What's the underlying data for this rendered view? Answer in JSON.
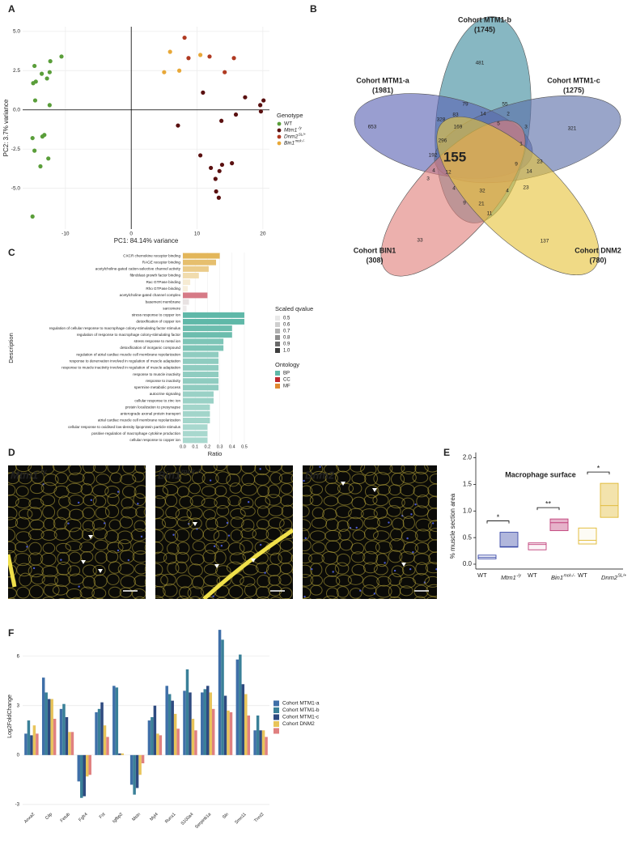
{
  "chart_data": [
    {
      "type": "scatter",
      "panel": "A",
      "x_label": "PC1: 84.14% variance",
      "y_label": "PC2: 3.7% variance",
      "xlim": [
        -16.5,
        21
      ],
      "ylim": [
        -7.6,
        5.3
      ],
      "xticks": [
        -10,
        0,
        10,
        20
      ],
      "yticks": [
        {
          "value": -5,
          "label": "-5.0"
        },
        -2.5,
        {
          "value": 0,
          "label": "0.0"
        },
        2.5,
        {
          "value": 5,
          "label": "5.0"
        }
      ],
      "grid": true,
      "legend_title": "Genotype",
      "series": [
        {
          "name": "WT",
          "color": "#5a9e3a",
          "x": [
            -10.6,
            -12.3,
            -14.7,
            -13.6,
            -12.4,
            -14.9,
            -14.5,
            -12.8,
            -14.6,
            -12.4,
            -13.2,
            -13.5,
            -15.0,
            -12.6,
            -14.7,
            -13.8,
            -15.0
          ],
          "values": [
            3.4,
            3.1,
            2.8,
            2.3,
            2.4,
            1.7,
            1.8,
            2.0,
            0.6,
            0.3,
            -1.6,
            -1.7,
            -1.8,
            -3.1,
            -2.6,
            -3.6,
            -6.8
          ]
        },
        {
          "name": "Mtm1",
          "name_sup": "-/y",
          "color": "#5a1010",
          "x": [
            7.1,
            10.5,
            10.9,
            13.7,
            15.9,
            17.3,
            19.6,
            20.1,
            19.7,
            13.8,
            13.4,
            12.8,
            12.9,
            13.3,
            15.3,
            12.1
          ],
          "values": [
            -1.0,
            -2.9,
            1.1,
            -0.7,
            -0.3,
            0.8,
            0.3,
            0.6,
            -0.1,
            -3.5,
            -3.9,
            -4.4,
            -5.2,
            -5.6,
            -3.4,
            -3.7
          ]
        },
        {
          "name": "Dnm2",
          "name_sup": "SL/+",
          "color": "#b03a22",
          "x": [
            8.1,
            8.7,
            11.9,
            15.6,
            14.2
          ],
          "values": [
            4.6,
            3.3,
            3.4,
            3.3,
            2.4
          ]
        },
        {
          "name": "Bin1",
          "name_sup": "mck-/-",
          "color": "#e8a838",
          "x": [
            5.0,
            5.9,
            7.3,
            10.5
          ],
          "values": [
            2.4,
            3.7,
            2.5,
            3.5
          ]
        }
      ]
    },
    {
      "type": "venn",
      "panel": "B",
      "sets": [
        {
          "name": "Cohort MTM1-a",
          "count": "(1981)",
          "color": "#5a63b3"
        },
        {
          "name": "Cohort MTM1-b",
          "count": "(1745)",
          "color": "#3d8a9c"
        },
        {
          "name": "Cohort MTM1-c",
          "count": "(1275)",
          "color": "#5a6ea8"
        },
        {
          "name": "Cohort BIN1",
          "count": "(308)",
          "color": "#e0807a"
        },
        {
          "name": "Cohort DNM2",
          "count": "(780)",
          "color": "#e6c43c"
        }
      ],
      "regions": [
        481,
        653,
        321,
        33,
        137,
        155,
        79,
        55,
        83,
        14,
        2,
        328,
        169,
        5,
        3,
        296,
        1,
        192,
        9,
        14,
        23,
        4,
        12,
        3,
        32,
        4,
        4,
        23,
        9,
        21,
        11
      ]
    },
    {
      "type": "hbar",
      "panel": "C",
      "x_label": "Ratio",
      "y_label": "Description",
      "xlim": [
        0,
        0.52
      ],
      "xticks": [
        {
          "value": 0,
          "label": "0.0"
        },
        0.1,
        0.2,
        0.3,
        0.4,
        0.5
      ],
      "grid": true,
      "categories": [
        "CXCR chemokine receptor binding",
        "RAGE receptor binding",
        "acetylcholine-gated cation-selective channel activity",
        "fibroblast growth factor binding",
        "Rac GTPase binding",
        "Rho GTPase binding",
        "acetylcholine-gated channel complex",
        "basement membrane",
        "sarcomere",
        "stress response to copper ion",
        "detoxification of copper ion",
        "regulation of cellular response to macrophage colony-stimulating factor stimulus",
        "regulation of response to macrophage colony-stimulating factor",
        "stress response to metal ion",
        "detoxification of inorganic compound",
        "regulation of atrial cardiac muscle cell membrane repolarization",
        "response to denervation involved in regulation of muscle adaptation",
        "response to muscle inactivity involved in regulation of muscle adaptation",
        "response to muscle inactivity",
        "response to inactivity",
        "spermine metabolic process",
        "autocrine signaling",
        "cellular response to zinc ion",
        "protein localization to presynapse",
        "anterograde axonal protein transport",
        "atrial cardiac muscle cell membrane repolarization",
        "cellular response to oxidised low-density lipoprotein particle stimulus",
        "positive regulation of macrophage cytokine production",
        "cellular response to copper ion"
      ],
      "values": [
        0.3,
        0.27,
        0.21,
        0.13,
        0.06,
        0.04,
        0.2,
        0.05,
        0.03,
        0.5,
        0.5,
        0.4,
        0.4,
        0.33,
        0.33,
        0.29,
        0.29,
        0.29,
        0.29,
        0.29,
        0.29,
        0.25,
        0.25,
        0.22,
        0.22,
        0.22,
        0.2,
        0.2,
        0.2
      ],
      "colors": [
        "#e3b65a",
        "#e6bf6e",
        "#ebcc8a",
        "#f1dcae",
        "#f6ebd3",
        "#f8efdd",
        "#d67a86",
        "#e8e2e2",
        "#eeeaea",
        "#5fb8a8",
        "#5fb8a8",
        "#6cbdae",
        "#6cbdae",
        "#7dc5b7",
        "#7dc5b7",
        "#8fccc0",
        "#8fccc0",
        "#8fccc0",
        "#8fccc0",
        "#8fccc0",
        "#8fccc0",
        "#9ad1c6",
        "#9ad1c6",
        "#a2d5ca",
        "#a2d5ca",
        "#a2d5ca",
        "#a8d8ce",
        "#a8d8ce",
        "#a8d8ce"
      ],
      "qvalue_legend": {
        "title": "Scaled qvalue",
        "values": [
          0.5,
          0.6,
          0.7,
          0.8,
          0.9,
          {
            "value": 1,
            "label": "1.0"
          }
        ],
        "colors": [
          "#e8e8e8",
          "#cfcfcf",
          "#b0b0b0",
          "#8e8e8e",
          "#6a6a6a",
          "#3d3d3d"
        ]
      },
      "ontology_legend": {
        "title": "Ontology",
        "names": [
          "BP",
          "CC",
          "MF"
        ],
        "colors": [
          "#5fb8a8",
          "#c0282e",
          "#e08a30"
        ]
      }
    },
    {
      "type": "image",
      "panel": "D",
      "images": [
        {
          "label": "Mtm1",
          "sup": "-/y"
        },
        {
          "label": "Bin1",
          "sup": "mck-/-"
        },
        {
          "label": "Dnm2",
          "sup": null
        }
      ]
    },
    {
      "type": "box",
      "panel": "E",
      "title": "Macrophage surface",
      "y_label": "% muscle section area",
      "ylim": [
        0,
        2.1
      ],
      "yticks": [
        {
          "value": 0,
          "label": "0.0"
        },
        0.5,
        {
          "value": 1,
          "label": "1.0"
        },
        1.5,
        {
          "value": 2,
          "label": "2.0"
        }
      ],
      "categories": [
        "WT",
        "Mtm1",
        "WT",
        "Bin1",
        "WT",
        "Dnm2"
      ],
      "category_sups": [
        null,
        "-/y",
        null,
        "mck-/-",
        null,
        "SL/+"
      ],
      "q1": [
        0.1,
        0.32,
        0.27,
        0.63,
        0.38,
        0.88
      ],
      "median": [
        0.13,
        0.33,
        0.37,
        0.78,
        0.45,
        1.1
      ],
      "q3": [
        0.17,
        0.6,
        0.4,
        0.85,
        0.68,
        1.52
      ],
      "colors": [
        "#3b4aa8",
        "#3b4aa8",
        "#c0407a",
        "#c0407a",
        "#e0b830",
        "#e0b830"
      ],
      "filled": [
        false,
        true,
        false,
        true,
        false,
        true
      ],
      "annotations": [
        "*",
        "**",
        "*"
      ]
    },
    {
      "type": "grouped_bar",
      "panel": "F",
      "y_label": "Log2FoldChange",
      "ylim": [
        -3.3,
        7.9
      ],
      "yticks": [
        -3,
        0,
        3,
        6
      ],
      "grid": true,
      "categories": [
        "Anxa2",
        "Cilp",
        "Fetub",
        "Fgfr4",
        "Fst",
        "Igfbp2",
        "Mstn",
        "Myl4",
        "Runx1",
        "S100a4",
        "Serpinb1a",
        "Sln",
        "Smn11",
        "Tnnt2"
      ],
      "series": [
        {
          "name": "Cohort MTM1-a",
          "color": "#3f6fa8",
          "values": [
            1.3,
            4.7,
            2.8,
            -1.6,
            2.6,
            4.2,
            -1.8,
            2.1,
            4.2,
            3.9,
            3.8,
            7.6,
            5.8,
            1.5
          ]
        },
        {
          "name": "Cohort MTM1-b",
          "color": "#3a8098",
          "values": [
            2.1,
            3.8,
            3.1,
            -2.6,
            2.8,
            4.1,
            -2.4,
            2.3,
            3.7,
            5.2,
            4.0,
            7.0,
            6.1,
            2.4
          ]
        },
        {
          "name": "Cohort MTM1-c",
          "color": "#2e4a80",
          "values": [
            1.2,
            3.4,
            2.3,
            -2.5,
            3.2,
            0.1,
            -2.0,
            3.0,
            3.3,
            3.8,
            4.2,
            3.6,
            4.3,
            1.5
          ]
        },
        {
          "name": "Cohort DNM2",
          "color": "#e8c45a",
          "values": [
            1.8,
            3.4,
            1.4,
            -1.3,
            1.8,
            0.1,
            -1.2,
            1.3,
            2.5,
            2.2,
            3.8,
            2.7,
            3.7,
            1.5
          ]
        },
        {
          "name": null,
          "color": "#e08080",
          "values": [
            1.3,
            2.2,
            1.4,
            -1.2,
            1.1,
            0.0,
            -0.5,
            1.2,
            1.6,
            1.5,
            2.8,
            2.6,
            2.4,
            1.1
          ]
        }
      ]
    }
  ]
}
